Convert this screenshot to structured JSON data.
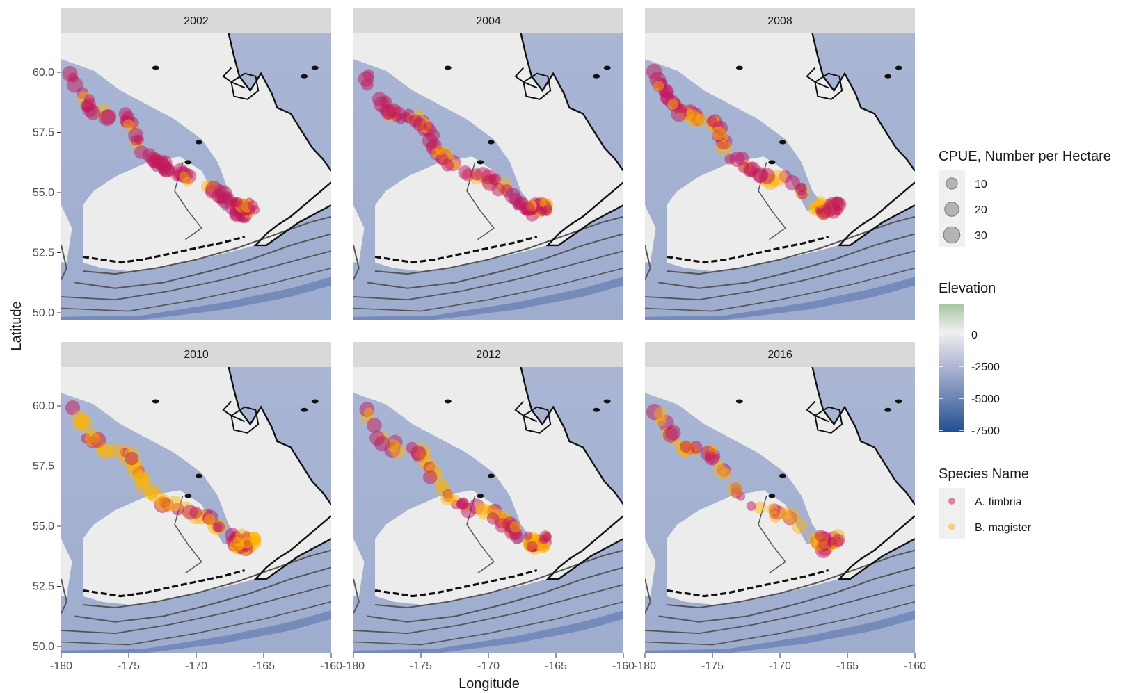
{
  "figure": {
    "xlabel": "Longitude",
    "ylabel": "Latitude"
  },
  "panels": [
    {
      "year": "2002",
      "intensity": 1.0,
      "magister_share": 0.15
    },
    {
      "year": "2004",
      "intensity": 1.0,
      "magister_share": 0.25
    },
    {
      "year": "2008",
      "intensity": 1.0,
      "magister_share": 0.35
    },
    {
      "year": "2010",
      "intensity": 1.0,
      "magister_share": 0.6
    },
    {
      "year": "2012",
      "intensity": 0.9,
      "magister_share": 0.55
    },
    {
      "year": "2016",
      "intensity": 0.75,
      "magister_share": 0.45
    }
  ],
  "x_ticks": [
    "-180",
    "-175",
    "-170",
    "-165",
    "-160"
  ],
  "y_ticks": [
    "60.0",
    "57.5",
    "55.0",
    "52.5",
    "50.0"
  ],
  "legend": {
    "size": {
      "title": "CPUE, Number per Hectare",
      "items": [
        {
          "label": "10",
          "value": 10
        },
        {
          "label": "20",
          "value": 20
        },
        {
          "label": "30",
          "value": 30
        }
      ]
    },
    "elevation": {
      "title": "Elevation",
      "ticks": [
        "0",
        "-2500",
        "-5000",
        "-7500"
      ],
      "colors": {
        "high": "#a7c4a0",
        "zero": "#f0f0f0",
        "mid": "#9fa9cd",
        "low": "#1f4f8f"
      }
    },
    "species": {
      "title": "Species Name",
      "items": [
        {
          "label": "A. fimbria",
          "color": "#c2185b"
        },
        {
          "label": "B. magister",
          "color": "#ffb300"
        }
      ]
    }
  },
  "colors": {
    "strip": "#d9d9d9",
    "ocean": "#a4b2d2",
    "land": "#ececec",
    "coast": "#111111",
    "contour": "#555555",
    "deep_trench": "#6a82b5"
  },
  "chart_data": {
    "type": "scatter",
    "title": "",
    "xlabel": "Longitude",
    "ylabel": "Latitude",
    "xlim": [
      -180,
      -160
    ],
    "ylim": [
      50,
      62
    ],
    "facets": [
      "2002",
      "2004",
      "2008",
      "2010",
      "2012",
      "2016"
    ],
    "series": [
      {
        "name": "A. fimbria"
      },
      {
        "name": "B. magister"
      }
    ],
    "shelf_edge": {
      "lon": [
        -179.3,
        -178.7,
        -178.0,
        -177.2,
        -176.3,
        -175.3,
        -174.8,
        -174.5,
        -174.0,
        -173.3,
        -172.7,
        -172.0,
        -171.2,
        -170.3,
        -169.6,
        -169.0,
        -168.4,
        -167.8,
        -167.2,
        -166.7,
        -166.1
      ],
      "lat": [
        60.4,
        59.8,
        59.1,
        58.7,
        58.5,
        58.5,
        58.2,
        57.8,
        57.2,
        56.8,
        56.5,
        56.3,
        56.1,
        55.9,
        55.8,
        55.6,
        55.3,
        55.0,
        54.7,
        54.5,
        54.5
      ]
    },
    "bubble_sizes": [
      10,
      20,
      30
    ]
  }
}
